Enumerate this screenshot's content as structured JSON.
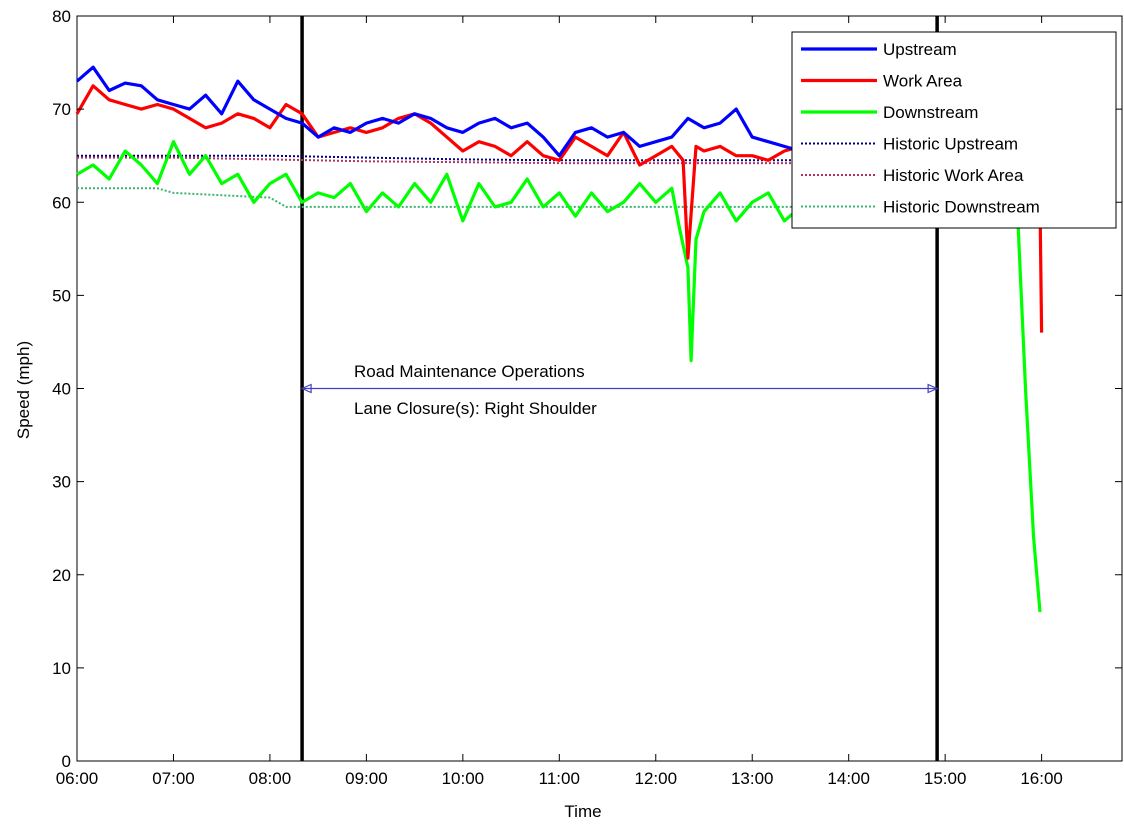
{
  "chart_data": {
    "type": "line",
    "title": "",
    "xlabel": "Time",
    "ylabel": "Speed (mph)",
    "xlim": [
      "06:00",
      "16:50"
    ],
    "ylim": [
      0,
      80
    ],
    "xticks": [
      "06:00",
      "07:00",
      "08:00",
      "09:00",
      "10:00",
      "11:00",
      "12:00",
      "13:00",
      "14:00",
      "15:00",
      "16:00"
    ],
    "yticks": [
      0,
      10,
      20,
      30,
      40,
      50,
      60,
      70,
      80
    ],
    "grid": false,
    "legend_position": "top-right",
    "series": [
      {
        "name": "Upstream",
        "style": "solid",
        "color": "#0000ff",
        "x": [
          "06:00",
          "06:10",
          "06:20",
          "06:30",
          "06:40",
          "06:50",
          "07:00",
          "07:10",
          "07:20",
          "07:30",
          "07:40",
          "07:50",
          "08:00",
          "08:10",
          "08:20",
          "08:30",
          "08:40",
          "08:50",
          "09:00",
          "09:10",
          "09:20",
          "09:30",
          "09:40",
          "09:50",
          "10:00",
          "10:10",
          "10:20",
          "10:30",
          "10:40",
          "10:50",
          "11:00",
          "11:10",
          "11:20",
          "11:30",
          "11:40",
          "11:50",
          "12:00",
          "12:10",
          "12:20",
          "12:30",
          "12:40",
          "12:50",
          "13:00",
          "13:10",
          "13:20",
          "13:30",
          "13:40",
          "13:50",
          "14:00"
        ],
        "values": [
          73,
          74.5,
          72,
          72.8,
          72.5,
          71,
          70.5,
          70,
          71.5,
          69.5,
          73,
          71,
          70,
          69,
          68.5,
          67,
          68,
          67.5,
          68.5,
          69,
          68.5,
          69.5,
          69,
          68,
          67.5,
          68.5,
          69,
          68,
          68.5,
          67,
          65,
          67.5,
          68,
          67,
          67.5,
          66,
          66.5,
          67,
          69,
          68,
          68.5,
          70,
          67,
          66.5,
          66,
          65.5,
          65.5,
          65,
          65
        ]
      },
      {
        "name": "Work Area",
        "style": "solid",
        "color": "#ff0000",
        "x": [
          "06:00",
          "06:10",
          "06:20",
          "06:30",
          "06:40",
          "06:50",
          "07:00",
          "07:10",
          "07:20",
          "07:30",
          "07:40",
          "07:50",
          "08:00",
          "08:10",
          "08:20",
          "08:30",
          "08:40",
          "08:50",
          "09:00",
          "09:10",
          "09:20",
          "09:30",
          "09:40",
          "09:50",
          "10:00",
          "10:10",
          "10:20",
          "10:30",
          "10:40",
          "10:50",
          "11:00",
          "11:10",
          "11:20",
          "11:30",
          "11:40",
          "11:50",
          "12:00",
          "12:10",
          "12:17",
          "12:20",
          "12:25",
          "12:30",
          "12:40",
          "12:50",
          "13:00",
          "13:10",
          "13:20",
          "13:30",
          "13:40",
          "13:50",
          "14:00",
          "15:59",
          "16:00"
        ],
        "values": [
          69.5,
          72.5,
          71,
          70.5,
          70,
          70.5,
          70,
          69,
          68,
          68.5,
          69.5,
          69,
          68,
          70.5,
          69.5,
          67,
          67.5,
          68,
          67.5,
          68,
          69,
          69.5,
          68.5,
          67,
          65.5,
          66.5,
          66,
          65,
          66.5,
          65,
          64.5,
          67,
          66,
          65,
          67.5,
          64,
          65,
          66,
          64.5,
          54,
          66,
          65.5,
          66,
          65,
          65,
          64.5,
          65.5,
          66,
          66,
          66,
          65,
          60,
          46
        ]
      },
      {
        "name": "Downstream",
        "style": "solid",
        "color": "#00ff00",
        "x": [
          "06:00",
          "06:10",
          "06:20",
          "06:30",
          "06:40",
          "06:50",
          "07:00",
          "07:10",
          "07:20",
          "07:30",
          "07:40",
          "07:50",
          "08:00",
          "08:10",
          "08:20",
          "08:30",
          "08:40",
          "08:50",
          "09:00",
          "09:10",
          "09:20",
          "09:30",
          "09:40",
          "09:50",
          "10:00",
          "10:10",
          "10:20",
          "10:30",
          "10:40",
          "10:50",
          "11:00",
          "11:10",
          "11:20",
          "11:30",
          "11:40",
          "11:50",
          "12:00",
          "12:10",
          "12:15",
          "12:20",
          "12:22",
          "12:25",
          "12:30",
          "12:40",
          "12:50",
          "13:00",
          "13:10",
          "13:20",
          "13:30",
          "13:40",
          "13:50",
          "14:00",
          "15:45",
          "15:50",
          "15:55",
          "15:59"
        ],
        "values": [
          63,
          64,
          62.5,
          65.5,
          64,
          62,
          66.5,
          63,
          65,
          62,
          63,
          60,
          62,
          63,
          60,
          61,
          60.5,
          62,
          59,
          61,
          59.5,
          62,
          60,
          63,
          58,
          62,
          59.5,
          60,
          62.5,
          59.5,
          61,
          58.5,
          61,
          59,
          60,
          62,
          60,
          61.5,
          57,
          53,
          43,
          56,
          59,
          61,
          58,
          60,
          61,
          58,
          59.5,
          60,
          61,
          59.5,
          59,
          40,
          24,
          16
        ]
      },
      {
        "name": "Historic Upstream",
        "style": "dotted",
        "color": "#000080",
        "x": [
          "06:00",
          "07:00",
          "08:00",
          "09:00",
          "10:00",
          "11:00",
          "12:00",
          "13:00",
          "14:00"
        ],
        "values": [
          65,
          65,
          65,
          64.8,
          64.6,
          64.5,
          64.5,
          64.5,
          64.5
        ]
      },
      {
        "name": "Historic Work Area",
        "style": "dotted",
        "color": "#b03060",
        "x": [
          "06:00",
          "07:00",
          "08:00",
          "09:00",
          "10:00",
          "11:00",
          "12:00",
          "13:00",
          "14:00"
        ],
        "values": [
          64.8,
          64.8,
          64.6,
          64.4,
          64.3,
          64.2,
          64.2,
          64.2,
          64.2
        ]
      },
      {
        "name": "Historic Downstream",
        "style": "dotted",
        "color": "#3cb371",
        "x": [
          "06:00",
          "06:50",
          "07:00",
          "08:00",
          "08:10",
          "09:00",
          "10:00",
          "11:00",
          "12:00",
          "13:00",
          "14:00"
        ],
        "values": [
          61.5,
          61.5,
          61,
          60.5,
          59.5,
          59.5,
          59.5,
          59.5,
          59.5,
          59.5,
          59.5
        ]
      }
    ],
    "vertical_lines": [
      "08:20",
      "14:55"
    ],
    "annotation": {
      "line1": "Road Maintenance Operations",
      "line2": "Lane Closure(s): Right Shoulder",
      "arrow_from": "08:20",
      "arrow_to": "14:55",
      "arrow_y": 40,
      "arrow_color": "#4040c0"
    }
  }
}
